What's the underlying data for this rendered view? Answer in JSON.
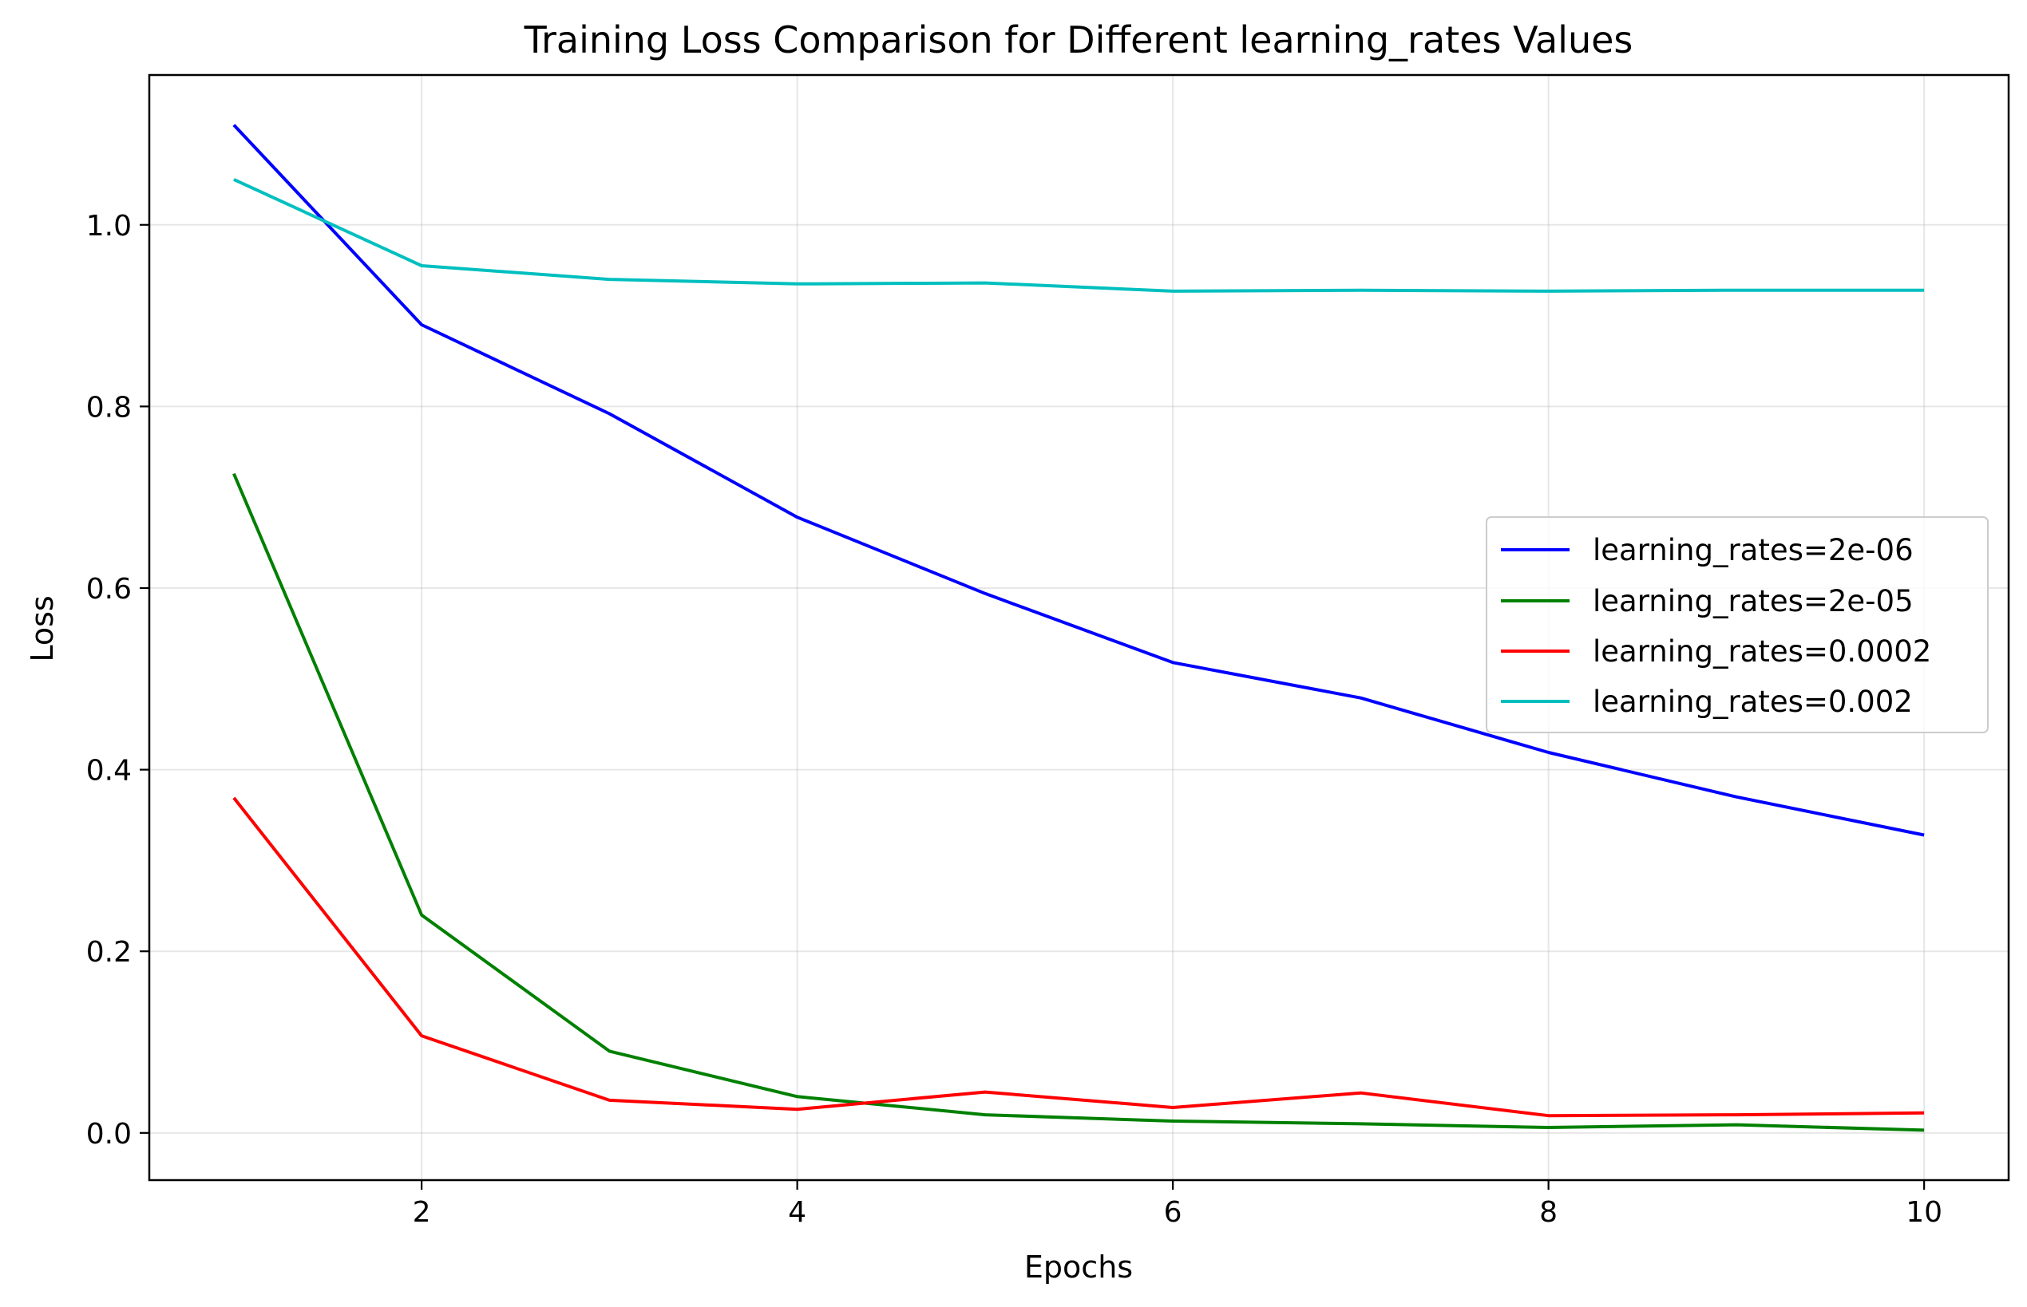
{
  "chart_data": {
    "type": "line",
    "title": "Training Loss Comparison for Different learning_rates Values",
    "xlabel": "Epochs",
    "ylabel": "Loss",
    "x": [
      1,
      2,
      3,
      4,
      5,
      6,
      7,
      8,
      9,
      10
    ],
    "xlim": [
      0.55,
      10.45
    ],
    "ylim": [
      -0.052,
      1.165
    ],
    "xticks": [
      2,
      4,
      6,
      8,
      10
    ],
    "xtick_labels": [
      "2",
      "4",
      "6",
      "8",
      "10"
    ],
    "yticks": [
      0.0,
      0.2,
      0.4,
      0.6,
      0.8,
      1.0
    ],
    "ytick_labels": [
      "0.0",
      "0.2",
      "0.4",
      "0.6",
      "0.8",
      "1.0"
    ],
    "grid": true,
    "legend_position": "center-right",
    "series": [
      {
        "name": "learning_rates=2e-06",
        "color": "#0000ff",
        "values": [
          1.11,
          0.89,
          0.792,
          0.678,
          0.594,
          0.518,
          0.479,
          0.419,
          0.37,
          0.328
        ]
      },
      {
        "name": "learning_rates=2e-05",
        "color": "#008000",
        "values": [
          0.726,
          0.24,
          0.09,
          0.04,
          0.02,
          0.013,
          0.01,
          0.006,
          0.009,
          0.003
        ]
      },
      {
        "name": "learning_rates=0.0002",
        "color": "#ff0000",
        "values": [
          0.369,
          0.107,
          0.036,
          0.026,
          0.045,
          0.028,
          0.044,
          0.019,
          0.02,
          0.022
        ]
      },
      {
        "name": "learning_rates=0.002",
        "color": "#00bfbf",
        "values": [
          1.05,
          0.955,
          0.94,
          0.935,
          0.936,
          0.927,
          0.928,
          0.927,
          0.928,
          0.928
        ]
      }
    ]
  }
}
